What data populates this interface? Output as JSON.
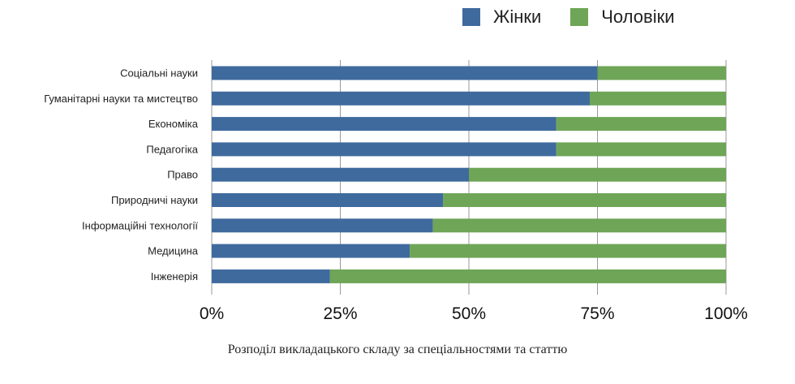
{
  "chart_data": {
    "type": "bar",
    "orientation": "horizontal",
    "stacked": true,
    "categories": [
      "Соціальні науки",
      "Гуманітарні науки та мистецтво",
      "Економіка",
      "Педагогіка",
      "Право",
      "Природничі науки",
      "Інформаційні технології",
      "Медицина",
      "Інженерія"
    ],
    "series": [
      {
        "name": "Жінки",
        "values": [
          75,
          73.5,
          67,
          67,
          50,
          45,
          43,
          38.5,
          23
        ],
        "color": "#3f6a9e"
      },
      {
        "name": "Чоловіки",
        "values": [
          25,
          26.5,
          33,
          33,
          50,
          55,
          57,
          61.5,
          77
        ],
        "color": "#6ea556"
      }
    ],
    "x_ticks": [
      "0%",
      "25%",
      "50%",
      "75%",
      "100%"
    ],
    "xlim": [
      0,
      100
    ],
    "grid": "vertical",
    "legend_position": "top-right",
    "caption": "Розподіл викладацького складу за спеціальностями та статтю"
  }
}
